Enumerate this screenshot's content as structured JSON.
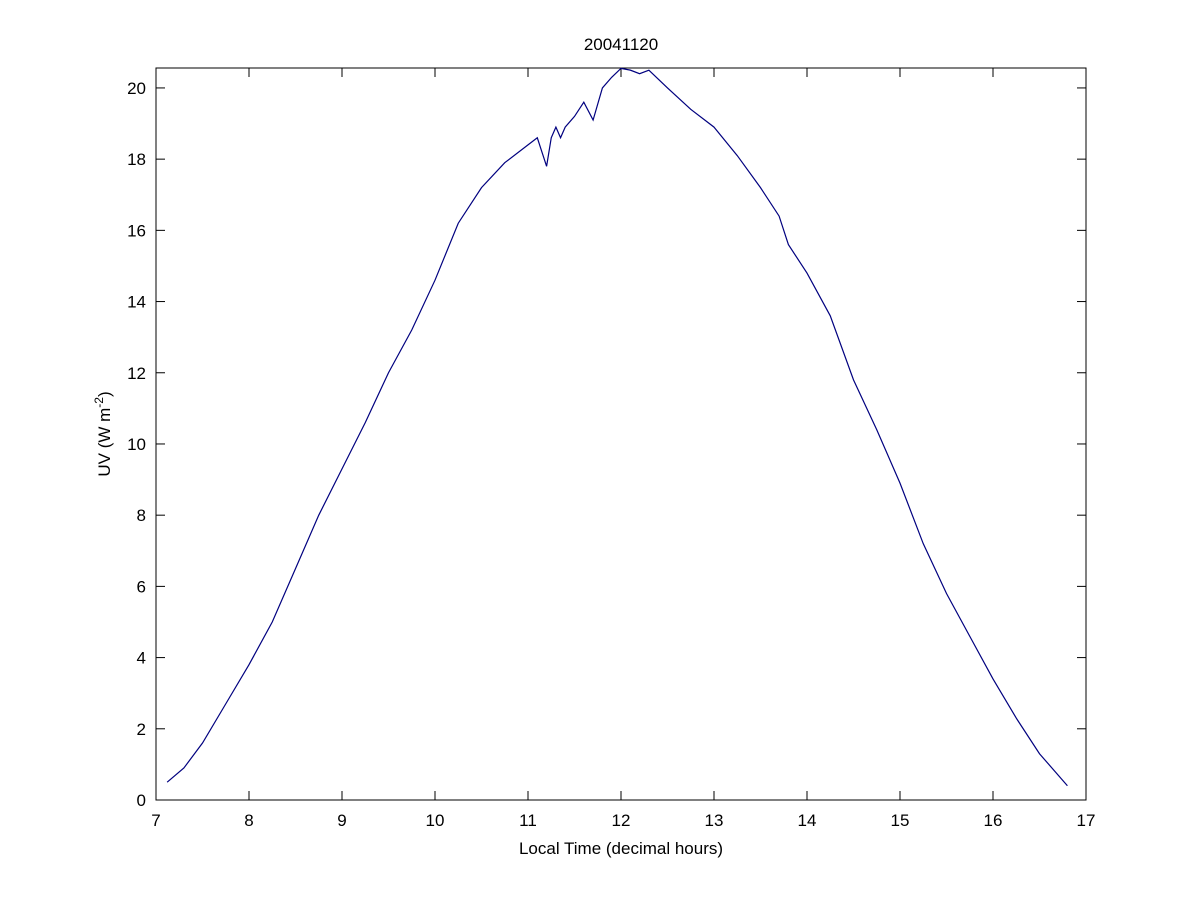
{
  "chart_data": {
    "type": "line",
    "title": "20041120",
    "x_label": "Local Time (decimal hours)",
    "y_label": {
      "text": "UV (W m",
      "superscript": "-2",
      "suffix": ")"
    },
    "x": [
      7.12,
      7.3,
      7.5,
      7.75,
      8.0,
      8.25,
      8.5,
      8.75,
      9.0,
      9.25,
      9.5,
      9.75,
      10.0,
      10.25,
      10.5,
      10.75,
      11.0,
      11.1,
      11.15,
      11.2,
      11.25,
      11.3,
      11.35,
      11.4,
      11.5,
      11.6,
      11.7,
      11.8,
      11.9,
      12.0,
      12.1,
      12.2,
      12.3,
      12.5,
      12.75,
      13.0,
      13.25,
      13.5,
      13.7,
      13.8,
      14.0,
      14.25,
      14.5,
      14.75,
      15.0,
      15.25,
      15.5,
      15.75,
      16.0,
      16.25,
      16.5,
      16.8
    ],
    "series": [
      {
        "name": "UV",
        "color": "#00007f",
        "values": [
          0.5,
          0.9,
          1.6,
          2.7,
          3.8,
          5.0,
          6.5,
          8.0,
          9.3,
          10.6,
          12.0,
          13.2,
          14.6,
          16.2,
          17.2,
          17.9,
          18.4,
          18.6,
          18.2,
          17.8,
          18.6,
          18.9,
          18.6,
          18.9,
          19.2,
          19.6,
          19.1,
          20.0,
          20.3,
          20.55,
          20.5,
          20.4,
          20.5,
          20.0,
          19.4,
          18.9,
          18.1,
          17.2,
          16.4,
          15.6,
          14.8,
          13.6,
          11.8,
          10.4,
          8.9,
          7.2,
          5.8,
          4.6,
          3.4,
          2.3,
          1.3,
          0.4
        ]
      }
    ],
    "xlim": [
      7,
      17
    ],
    "xticks": [
      7,
      8,
      9,
      10,
      11,
      12,
      13,
      14,
      15,
      16,
      17
    ],
    "ylim": [
      0,
      20.56
    ],
    "yticks": [
      0,
      2,
      4,
      6,
      8,
      10,
      12,
      14,
      16,
      18,
      20
    ],
    "grid": false
  }
}
